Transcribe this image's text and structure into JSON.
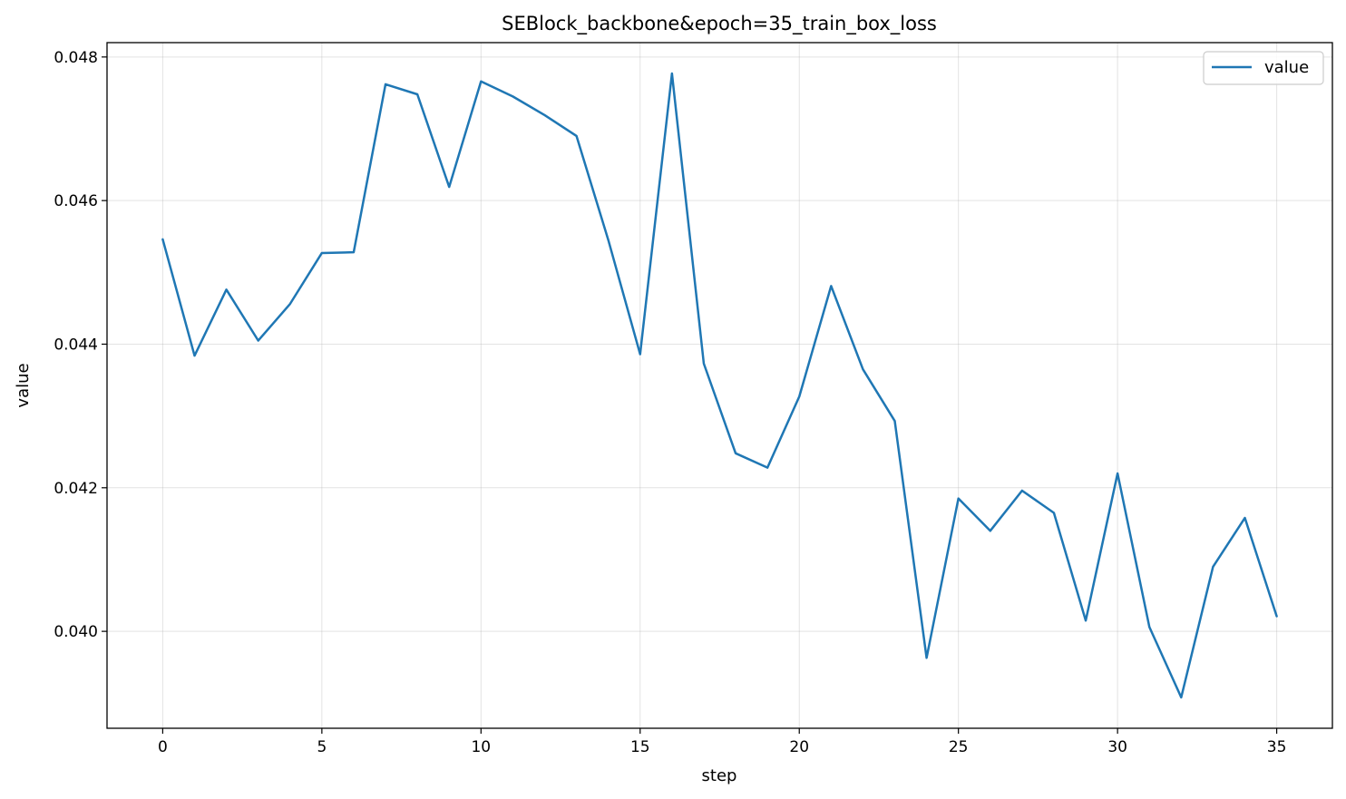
{
  "chart_data": {
    "type": "line",
    "title": "SEBlock_backbone&epoch=35_train_box_loss",
    "xlabel": "step",
    "ylabel": "value",
    "xlim": [
      -1.75,
      36.75
    ],
    "ylim": [
      0.03865,
      0.0482
    ],
    "xticks": [
      0,
      5,
      10,
      15,
      20,
      25,
      30,
      35
    ],
    "xtick_labels": [
      "0",
      "5",
      "10",
      "15",
      "20",
      "25",
      "30",
      "35"
    ],
    "yticks": [
      0.04,
      0.042,
      0.044,
      0.046,
      0.048
    ],
    "ytick_labels": [
      "0.040",
      "0.042",
      "0.044",
      "0.046",
      "0.048"
    ],
    "grid": true,
    "legend_position": "top-right",
    "series": [
      {
        "name": "value",
        "color": "#1f77b4",
        "x": [
          0,
          1,
          2,
          3,
          4,
          5,
          6,
          7,
          8,
          9,
          10,
          11,
          12,
          13,
          14,
          15,
          16,
          17,
          18,
          19,
          20,
          21,
          22,
          23,
          24,
          25,
          26,
          27,
          28,
          29,
          30,
          31,
          32,
          33,
          34,
          35
        ],
        "values": [
          0.04546,
          0.04384,
          0.04476,
          0.04405,
          0.04456,
          0.04527,
          0.04528,
          0.04762,
          0.04748,
          0.04619,
          0.04766,
          0.04745,
          0.04719,
          0.0469,
          0.04545,
          0.04386,
          0.04777,
          0.04373,
          0.04248,
          0.04228,
          0.04327,
          0.04481,
          0.04365,
          0.04293,
          0.03963,
          0.04185,
          0.0414,
          0.04196,
          0.04165,
          0.04015,
          0.0422,
          0.04006,
          0.03908,
          0.0409,
          0.04158,
          0.04021
        ]
      }
    ]
  }
}
